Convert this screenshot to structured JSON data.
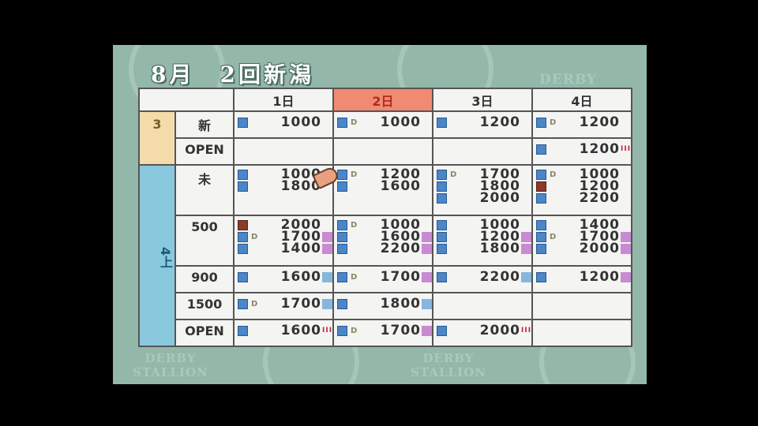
{
  "header": {
    "title": "8月　2回新潟"
  },
  "watermarks": [
    "DERBY",
    "DERBY STALLION",
    "DERBY STALLION"
  ],
  "colors": {
    "panel": "#93b8aa",
    "today": "#f08a72",
    "age3": "#f3dcaa",
    "age4": "#8ac8de",
    "icon_blue": "#4a86c8",
    "icon_brown": "#8a3a2a",
    "grade_III": "#c02838",
    "badge_purple": "#c88ad0",
    "badge_blue": "#86b6dc"
  },
  "days": [
    "1日",
    "2日",
    "3日",
    "4日"
  ],
  "highlighted_day": 1,
  "groups": [
    {
      "label": "3"
    },
    {
      "label": "4上"
    }
  ],
  "rows": [
    {
      "group": 0,
      "cls": "新",
      "cells": [
        [
          {
            "icon": "blue",
            "dirt": "",
            "dist": "1000",
            "badge": ""
          }
        ],
        [
          {
            "icon": "blue",
            "dirt": "D",
            "dist": "1000",
            "badge": ""
          }
        ],
        [
          {
            "icon": "blue",
            "dirt": "",
            "dist": "1200",
            "badge": ""
          }
        ],
        [
          {
            "icon": "blue",
            "dirt": "D",
            "dist": "1200",
            "badge": ""
          }
        ]
      ]
    },
    {
      "group": 0,
      "cls": "OPEN",
      "cells": [
        [],
        [],
        [],
        [
          {
            "icon": "blue",
            "dirt": "",
            "dist": "1200",
            "badge": "III"
          }
        ]
      ]
    },
    {
      "group": 1,
      "cls": "未",
      "cells": [
        [
          {
            "icon": "blue",
            "dirt": "",
            "dist": "1000",
            "badge": ""
          },
          {
            "icon": "blue",
            "dirt": "",
            "dist": "1800",
            "badge": ""
          }
        ],
        [
          {
            "icon": "blue",
            "dirt": "D",
            "dist": "1200",
            "badge": ""
          },
          {
            "icon": "blue",
            "dirt": "",
            "dist": "1600",
            "badge": ""
          }
        ],
        [
          {
            "icon": "blue",
            "dirt": "D",
            "dist": "1700",
            "badge": ""
          },
          {
            "icon": "blue",
            "dirt": "",
            "dist": "1800",
            "badge": ""
          },
          {
            "icon": "blue",
            "dirt": "",
            "dist": "2000",
            "badge": ""
          }
        ],
        [
          {
            "icon": "blue",
            "dirt": "D",
            "dist": "1000",
            "badge": ""
          },
          {
            "icon": "brown",
            "dirt": "",
            "dist": "1200",
            "badge": ""
          },
          {
            "icon": "blue",
            "dirt": "",
            "dist": "2200",
            "badge": ""
          }
        ]
      ]
    },
    {
      "group": 1,
      "cls": "500",
      "cells": [
        [
          {
            "icon": "brown",
            "dirt": "",
            "dist": "2000",
            "badge": ""
          },
          {
            "icon": "blue",
            "dirt": "D",
            "dist": "1700",
            "badge": "P"
          },
          {
            "icon": "blue",
            "dirt": "",
            "dist": "1400",
            "badge": "P"
          }
        ],
        [
          {
            "icon": "blue",
            "dirt": "D",
            "dist": "1000",
            "badge": ""
          },
          {
            "icon": "blue",
            "dirt": "",
            "dist": "1600",
            "badge": "P"
          },
          {
            "icon": "blue",
            "dirt": "",
            "dist": "2200",
            "badge": "P"
          }
        ],
        [
          {
            "icon": "blue",
            "dirt": "",
            "dist": "1000",
            "badge": ""
          },
          {
            "icon": "blue",
            "dirt": "",
            "dist": "1200",
            "badge": "P"
          },
          {
            "icon": "blue",
            "dirt": "",
            "dist": "1800",
            "badge": "P"
          }
        ],
        [
          {
            "icon": "blue",
            "dirt": "",
            "dist": "1400",
            "badge": ""
          },
          {
            "icon": "blue",
            "dirt": "D",
            "dist": "1700",
            "badge": "P"
          },
          {
            "icon": "blue",
            "dirt": "",
            "dist": "2000",
            "badge": "P"
          }
        ]
      ]
    },
    {
      "group": 1,
      "cls": "900",
      "cells": [
        [
          {
            "icon": "blue",
            "dirt": "",
            "dist": "1600",
            "badge": "B"
          }
        ],
        [
          {
            "icon": "blue",
            "dirt": "D",
            "dist": "1700",
            "badge": "P"
          }
        ],
        [
          {
            "icon": "blue",
            "dirt": "",
            "dist": "2200",
            "badge": "B"
          }
        ],
        [
          {
            "icon": "blue",
            "dirt": "",
            "dist": "1200",
            "badge": "P"
          }
        ]
      ]
    },
    {
      "group": 1,
      "cls": "1500",
      "cells": [
        [
          {
            "icon": "blue",
            "dirt": "D",
            "dist": "1700",
            "badge": "B"
          }
        ],
        [
          {
            "icon": "blue",
            "dirt": "",
            "dist": "1800",
            "badge": "B"
          }
        ],
        [],
        []
      ]
    },
    {
      "group": 1,
      "cls": "OPEN",
      "cells": [
        [
          {
            "icon": "blue",
            "dirt": "",
            "dist": "1600",
            "badge": "III"
          }
        ],
        [
          {
            "icon": "blue",
            "dirt": "D",
            "dist": "1700",
            "badge": "P"
          }
        ],
        [
          {
            "icon": "blue",
            "dirt": "",
            "dist": "2000",
            "badge": "III"
          }
        ],
        []
      ]
    }
  ]
}
